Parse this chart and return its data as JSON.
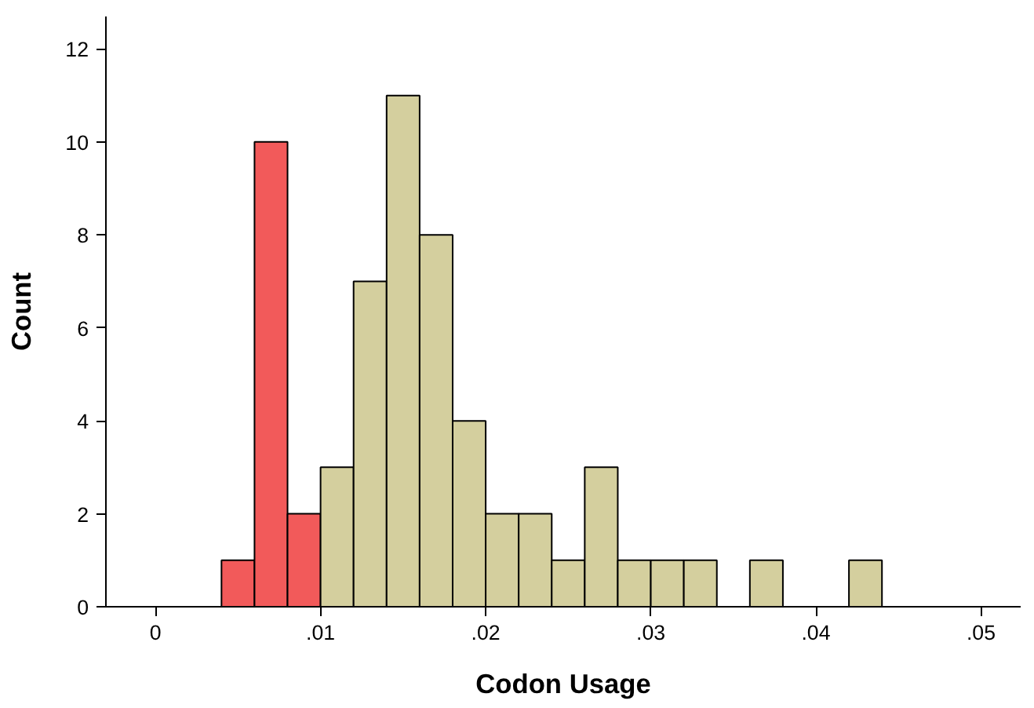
{
  "chart_data": {
    "type": "histogram",
    "xlabel": "Codon Usage",
    "ylabel": "Count",
    "bins": [
      0.004,
      0.006,
      0.008,
      0.01,
      0.012,
      0.014,
      0.016,
      0.018,
      0.02,
      0.022,
      0.024,
      0.026,
      0.028,
      0.03,
      0.032,
      0.034,
      0.036,
      0.038,
      0.04,
      0.042,
      0.044
    ],
    "values": [
      1,
      10,
      2,
      3,
      7,
      11,
      8,
      4,
      2,
      2,
      1,
      3,
      1,
      1,
      1,
      0,
      1,
      0,
      0,
      1
    ],
    "colors": [
      "#f25a5a",
      "#f25a5a",
      "#f25a5a",
      "#d4cf9e",
      "#d4cf9e",
      "#d4cf9e",
      "#d4cf9e",
      "#d4cf9e",
      "#d4cf9e",
      "#d4cf9e",
      "#d4cf9e",
      "#d4cf9e",
      "#d4cf9e",
      "#d4cf9e",
      "#d4cf9e",
      "#d4cf9e",
      "#d4cf9e",
      "#d4cf9e",
      "#d4cf9e",
      "#d4cf9e"
    ],
    "xlim": [
      -0.003,
      0.0524
    ],
    "ylim": [
      0,
      12.7
    ],
    "xticks": [
      {
        "value": 0,
        "label": "0"
      },
      {
        "value": 0.01,
        "label": ".01"
      },
      {
        "value": 0.02,
        "label": ".02"
      },
      {
        "value": 0.03,
        "label": ".03"
      },
      {
        "value": 0.04,
        "label": ".04"
      },
      {
        "value": 0.05,
        "label": ".05"
      }
    ],
    "yticks": [
      0,
      2,
      4,
      6,
      8,
      10,
      12
    ],
    "grid": false
  }
}
